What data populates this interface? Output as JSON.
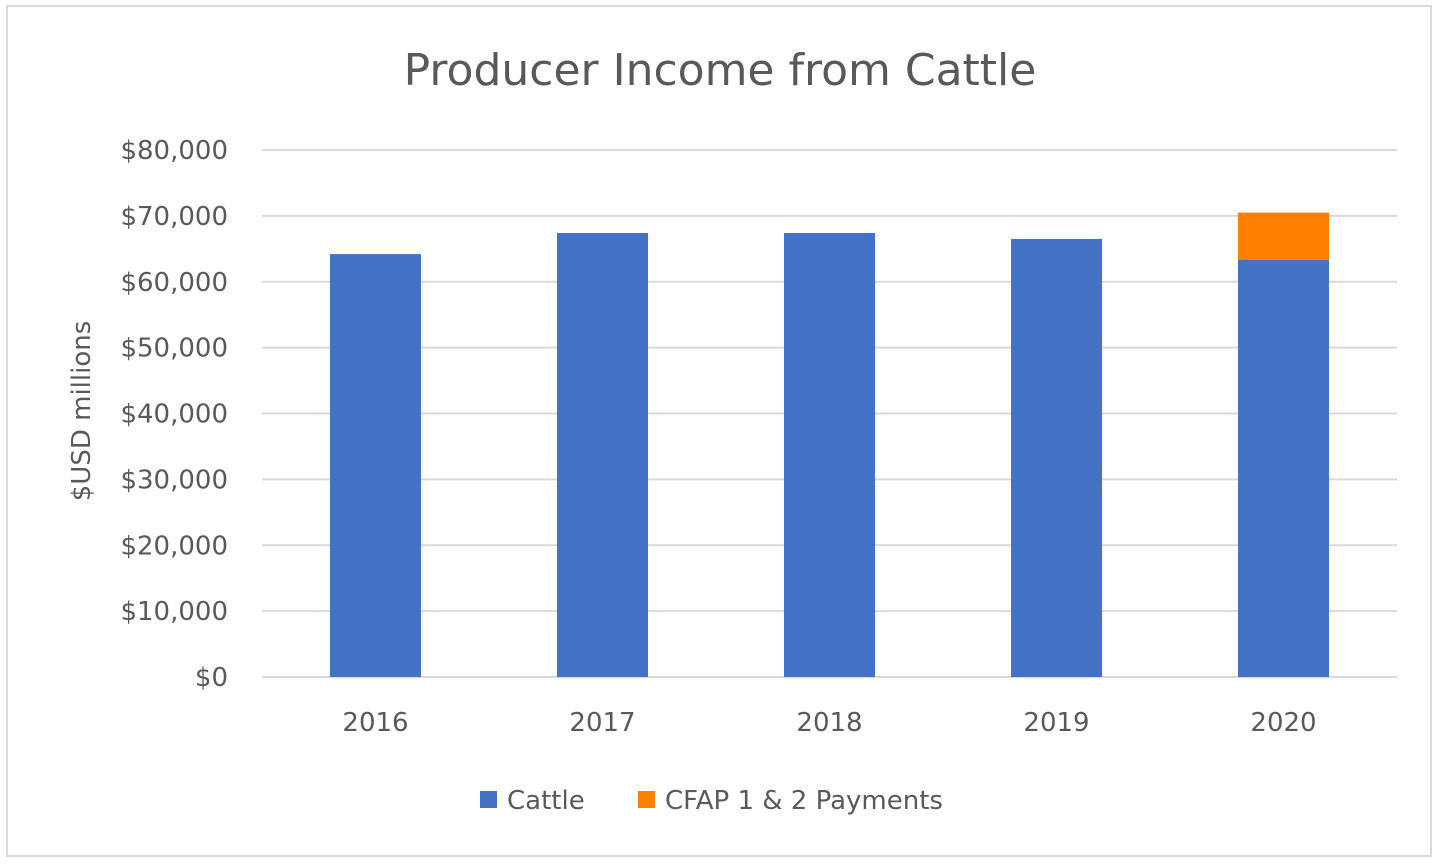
{
  "chart_data": {
    "type": "bar",
    "stacked": true,
    "title": "Producer Income from Cattle",
    "xlabel": "",
    "ylabel": "$USD millions",
    "categories": [
      "2016",
      "2017",
      "2018",
      "2019",
      "2020"
    ],
    "ylim": [
      0,
      80000
    ],
    "y_ticks": [
      0,
      10000,
      20000,
      30000,
      40000,
      50000,
      60000,
      70000,
      80000
    ],
    "y_tick_labels": [
      "$0",
      "$10,000",
      "$20,000",
      "$30,000",
      "$40,000",
      "$50,000",
      "$60,000",
      "$70,000",
      "$80,000"
    ],
    "grid": true,
    "legend_position": "bottom",
    "series": [
      {
        "name": "Cattle",
        "color": "#4472c4",
        "values": [
          64200,
          67400,
          67400,
          66500,
          63300
        ]
      },
      {
        "name": "CFAP 1 & 2 Payments",
        "color": "#ff7f00",
        "values": [
          0,
          0,
          0,
          0,
          7200
        ]
      }
    ]
  }
}
